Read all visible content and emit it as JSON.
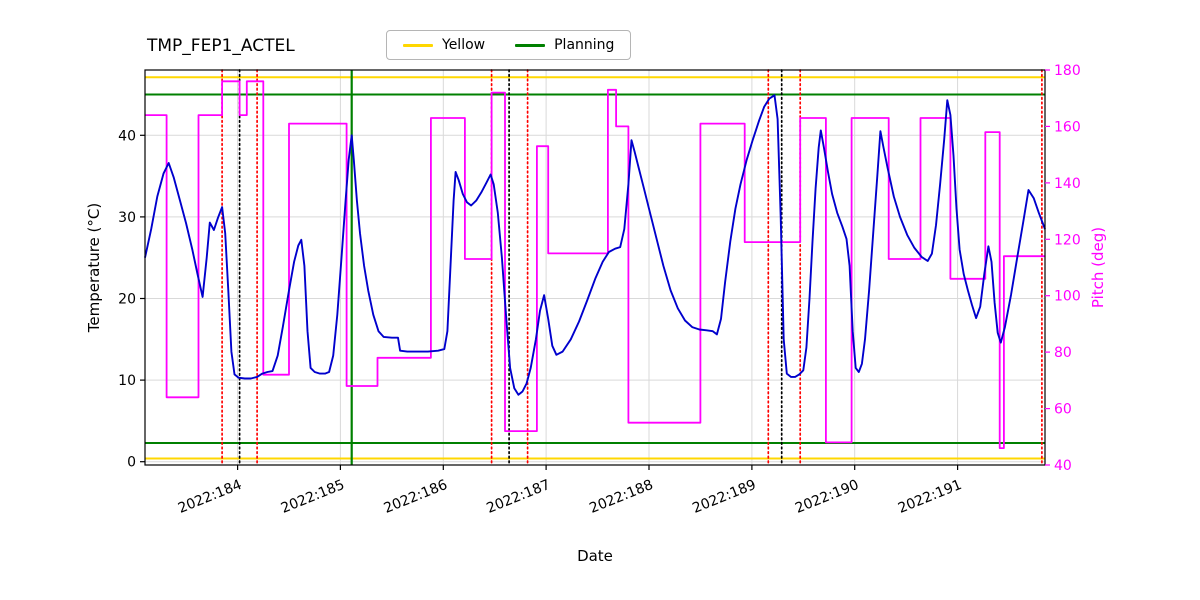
{
  "title": "TMP_FEP1_ACTEL",
  "legend": {
    "items": [
      {
        "label": "Yellow",
        "color": "#FFD700"
      },
      {
        "label": "Planning",
        "color": "#008000"
      }
    ]
  },
  "chart_data": {
    "type": "line",
    "title": "TMP_FEP1_ACTEL",
    "xlabel": "Date",
    "ylabel_left": "Temperature (°C)",
    "ylabel_right": "Pitch (deg)",
    "xlim": [
      183.1,
      191.85
    ],
    "ylim_left": [
      -0.4,
      48.0
    ],
    "ylim_right": [
      40,
      180
    ],
    "grid": true,
    "x_ticks": {
      "values": [
        184,
        185,
        186,
        187,
        188,
        189,
        190,
        191
      ],
      "labels": [
        "2022:184",
        "2022:185",
        "2022:186",
        "2022:187",
        "2022:188",
        "2022:189",
        "2022:190",
        "2022:191"
      ]
    },
    "y_ticks_left": [
      0,
      10,
      20,
      30,
      40
    ],
    "y_ticks_right": [
      40,
      60,
      80,
      100,
      120,
      140,
      160,
      180
    ],
    "series": [
      {
        "name": "temperature",
        "axis": "left",
        "color": "#0000CD",
        "points": [
          [
            183.1,
            25.0
          ],
          [
            183.16,
            28.5
          ],
          [
            183.22,
            32.5
          ],
          [
            183.28,
            35.3
          ],
          [
            183.33,
            36.6
          ],
          [
            183.38,
            34.8
          ],
          [
            183.44,
            32.0
          ],
          [
            183.5,
            29.2
          ],
          [
            183.56,
            26.0
          ],
          [
            183.61,
            23.0
          ],
          [
            183.66,
            20.2
          ],
          [
            183.7,
            25.0
          ],
          [
            183.73,
            29.3
          ],
          [
            183.77,
            28.4
          ],
          [
            183.81,
            29.9
          ],
          [
            183.85,
            31.2
          ],
          [
            183.88,
            28.0
          ],
          [
            183.91,
            21.0
          ],
          [
            183.94,
            13.5
          ],
          [
            183.97,
            10.7
          ],
          [
            184.01,
            10.3
          ],
          [
            184.07,
            10.2
          ],
          [
            184.13,
            10.2
          ],
          [
            184.19,
            10.4
          ],
          [
            184.24,
            10.8
          ],
          [
            184.29,
            11.0
          ],
          [
            184.34,
            11.1
          ],
          [
            184.39,
            13.0
          ],
          [
            184.44,
            16.5
          ],
          [
            184.5,
            21.0
          ],
          [
            184.55,
            24.5
          ],
          [
            184.59,
            26.5
          ],
          [
            184.62,
            27.2
          ],
          [
            184.65,
            24.0
          ],
          [
            184.68,
            16.0
          ],
          [
            184.71,
            11.5
          ],
          [
            184.75,
            11.0
          ],
          [
            184.8,
            10.8
          ],
          [
            184.85,
            10.8
          ],
          [
            184.89,
            11.0
          ],
          [
            184.93,
            13.0
          ],
          [
            184.97,
            18.0
          ],
          [
            185.01,
            25.0
          ],
          [
            185.05,
            32.0
          ],
          [
            185.08,
            37.0
          ],
          [
            185.11,
            40.0
          ],
          [
            185.13,
            37.0
          ],
          [
            185.16,
            32.0
          ],
          [
            185.19,
            28.0
          ],
          [
            185.23,
            24.0
          ],
          [
            185.27,
            21.0
          ],
          [
            185.32,
            18.0
          ],
          [
            185.37,
            16.0
          ],
          [
            185.42,
            15.3
          ],
          [
            185.5,
            15.2
          ],
          [
            185.56,
            15.2
          ],
          [
            185.58,
            13.6
          ],
          [
            185.65,
            13.5
          ],
          [
            185.75,
            13.5
          ],
          [
            185.85,
            13.5
          ],
          [
            185.95,
            13.6
          ],
          [
            186.01,
            13.8
          ],
          [
            186.04,
            16.0
          ],
          [
            186.07,
            24.0
          ],
          [
            186.1,
            32.0
          ],
          [
            186.12,
            35.5
          ],
          [
            186.15,
            34.5
          ],
          [
            186.19,
            32.8
          ],
          [
            186.23,
            31.8
          ],
          [
            186.27,
            31.4
          ],
          [
            186.32,
            32.0
          ],
          [
            186.37,
            33.0
          ],
          [
            186.42,
            34.2
          ],
          [
            186.46,
            35.2
          ],
          [
            186.49,
            34.0
          ],
          [
            186.53,
            30.5
          ],
          [
            186.57,
            25.0
          ],
          [
            186.61,
            18.0
          ],
          [
            186.65,
            11.5
          ],
          [
            186.69,
            9.0
          ],
          [
            186.73,
            8.2
          ],
          [
            186.77,
            8.6
          ],
          [
            186.81,
            9.6
          ],
          [
            186.85,
            11.5
          ],
          [
            186.9,
            15.0
          ],
          [
            186.94,
            18.5
          ],
          [
            186.98,
            20.4
          ],
          [
            187.02,
            17.5
          ],
          [
            187.06,
            14.2
          ],
          [
            187.1,
            13.1
          ],
          [
            187.16,
            13.5
          ],
          [
            187.24,
            15.0
          ],
          [
            187.32,
            17.2
          ],
          [
            187.4,
            19.8
          ],
          [
            187.48,
            22.5
          ],
          [
            187.55,
            24.5
          ],
          [
            187.61,
            25.7
          ],
          [
            187.67,
            26.1
          ],
          [
            187.72,
            26.3
          ],
          [
            187.76,
            28.5
          ],
          [
            187.8,
            34.0
          ],
          [
            187.83,
            39.4
          ],
          [
            187.86,
            38.0
          ],
          [
            187.9,
            36.0
          ],
          [
            187.95,
            33.5
          ],
          [
            188.0,
            31.0
          ],
          [
            188.07,
            27.5
          ],
          [
            188.14,
            24.0
          ],
          [
            188.21,
            21.0
          ],
          [
            188.28,
            18.8
          ],
          [
            188.35,
            17.3
          ],
          [
            188.42,
            16.5
          ],
          [
            188.49,
            16.2
          ],
          [
            188.56,
            16.1
          ],
          [
            188.62,
            16.0
          ],
          [
            188.66,
            15.6
          ],
          [
            188.7,
            17.5
          ],
          [
            188.74,
            22.0
          ],
          [
            188.79,
            27.0
          ],
          [
            188.84,
            31.0
          ],
          [
            188.89,
            34.0
          ],
          [
            188.95,
            37.0
          ],
          [
            189.01,
            39.5
          ],
          [
            189.07,
            41.8
          ],
          [
            189.12,
            43.5
          ],
          [
            189.17,
            44.5
          ],
          [
            189.22,
            44.9
          ],
          [
            189.25,
            42.0
          ],
          [
            189.28,
            30.0
          ],
          [
            189.31,
            15.0
          ],
          [
            189.34,
            10.8
          ],
          [
            189.38,
            10.4
          ],
          [
            189.42,
            10.4
          ],
          [
            189.46,
            10.7
          ],
          [
            189.5,
            11.2
          ],
          [
            189.53,
            14.0
          ],
          [
            189.56,
            20.0
          ],
          [
            189.59,
            27.0
          ],
          [
            189.62,
            33.5
          ],
          [
            189.65,
            38.5
          ],
          [
            189.67,
            40.6
          ],
          [
            189.7,
            38.5
          ],
          [
            189.74,
            35.5
          ],
          [
            189.78,
            32.8
          ],
          [
            189.83,
            30.5
          ],
          [
            189.88,
            28.8
          ],
          [
            189.92,
            27.3
          ],
          [
            189.95,
            24.0
          ],
          [
            189.98,
            16.0
          ],
          [
            190.01,
            11.5
          ],
          [
            190.04,
            11.0
          ],
          [
            190.07,
            12.0
          ],
          [
            190.1,
            15.0
          ],
          [
            190.14,
            21.0
          ],
          [
            190.18,
            28.0
          ],
          [
            190.22,
            35.0
          ],
          [
            190.25,
            40.5
          ],
          [
            190.28,
            38.5
          ],
          [
            190.32,
            36.0
          ],
          [
            190.38,
            32.5
          ],
          [
            190.44,
            30.0
          ],
          [
            190.51,
            27.8
          ],
          [
            190.58,
            26.2
          ],
          [
            190.65,
            25.1
          ],
          [
            190.71,
            24.6
          ],
          [
            190.75,
            25.5
          ],
          [
            190.79,
            29.0
          ],
          [
            190.83,
            34.0
          ],
          [
            190.87,
            39.5
          ],
          [
            190.9,
            44.3
          ],
          [
            190.93,
            42.5
          ],
          [
            190.96,
            37.5
          ],
          [
            190.99,
            31.0
          ],
          [
            191.02,
            26.0
          ],
          [
            191.06,
            23.0
          ],
          [
            191.1,
            21.0
          ],
          [
            191.14,
            19.2
          ],
          [
            191.18,
            17.6
          ],
          [
            191.22,
            19.0
          ],
          [
            191.26,
            23.0
          ],
          [
            191.3,
            26.4
          ],
          [
            191.33,
            24.5
          ],
          [
            191.36,
            19.5
          ],
          [
            191.39,
            15.8
          ],
          [
            191.42,
            14.6
          ],
          [
            191.46,
            16.5
          ],
          [
            191.52,
            20.5
          ],
          [
            191.58,
            25.0
          ],
          [
            191.64,
            29.5
          ],
          [
            191.69,
            33.3
          ],
          [
            191.74,
            32.3
          ],
          [
            191.79,
            30.5
          ],
          [
            191.85,
            28.5
          ]
        ]
      },
      {
        "name": "pitch",
        "axis": "right",
        "color": "#FF00FF",
        "segments": [
          [
            183.1,
            183.31,
            164
          ],
          [
            183.31,
            183.62,
            64
          ],
          [
            183.62,
            183.85,
            164
          ],
          [
            183.85,
            184.02,
            176
          ],
          [
            184.02,
            184.09,
            164
          ],
          [
            184.09,
            184.25,
            176
          ],
          [
            184.25,
            184.5,
            72
          ],
          [
            184.5,
            185.06,
            161
          ],
          [
            185.06,
            185.36,
            68
          ],
          [
            185.36,
            185.88,
            78
          ],
          [
            185.88,
            186.21,
            163
          ],
          [
            186.21,
            186.47,
            113
          ],
          [
            186.47,
            186.6,
            172
          ],
          [
            186.6,
            186.91,
            52
          ],
          [
            186.91,
            187.02,
            153
          ],
          [
            187.02,
            187.6,
            115
          ],
          [
            187.6,
            187.68,
            173
          ],
          [
            187.68,
            187.8,
            160
          ],
          [
            187.8,
            188.5,
            55
          ],
          [
            188.5,
            188.93,
            161
          ],
          [
            188.93,
            189.47,
            119
          ],
          [
            189.47,
            189.72,
            163
          ],
          [
            189.72,
            189.97,
            48
          ],
          [
            189.97,
            190.33,
            163
          ],
          [
            190.33,
            190.64,
            113
          ],
          [
            190.64,
            190.93,
            163
          ],
          [
            190.93,
            191.27,
            106
          ],
          [
            191.27,
            191.41,
            158
          ],
          [
            191.41,
            191.45,
            46
          ],
          [
            191.45,
            191.85,
            114
          ]
        ]
      }
    ],
    "limit_lines": [
      {
        "name": "yellow-high",
        "value": 47.1,
        "color": "#FFD700"
      },
      {
        "name": "yellow-low",
        "value": 0.4,
        "color": "#FFD700"
      },
      {
        "name": "planning-high",
        "value": 45.0,
        "color": "#008000"
      },
      {
        "name": "planning-low",
        "value": 2.3,
        "color": "#008000"
      }
    ],
    "vlines": [
      {
        "x": 185.11,
        "color": "#008000",
        "style": "solid",
        "name": "planning-event"
      },
      {
        "x": 183.85,
        "color": "#FF0000",
        "style": "dotted",
        "name": "red-event-1"
      },
      {
        "x": 184.19,
        "color": "#FF0000",
        "style": "dotted",
        "name": "red-event-2"
      },
      {
        "x": 186.47,
        "color": "#FF0000",
        "style": "dotted",
        "name": "red-event-3"
      },
      {
        "x": 186.82,
        "color": "#FF0000",
        "style": "dotted",
        "name": "red-event-4"
      },
      {
        "x": 189.16,
        "color": "#FF0000",
        "style": "dotted",
        "name": "red-event-5"
      },
      {
        "x": 189.47,
        "color": "#FF0000",
        "style": "dotted",
        "name": "red-event-6"
      },
      {
        "x": 191.82,
        "color": "#FF0000",
        "style": "dotted",
        "name": "red-event-7"
      },
      {
        "x": 184.02,
        "color": "#000000",
        "style": "dotted",
        "name": "black-event-1"
      },
      {
        "x": 186.64,
        "color": "#000000",
        "style": "dotted",
        "name": "black-event-2"
      },
      {
        "x": 189.29,
        "color": "#000000",
        "style": "dotted",
        "name": "black-event-3"
      }
    ],
    "colors": {
      "temperature": "#0000CD",
      "pitch": "#FF00FF",
      "yellow_limit": "#FFD700",
      "planning_limit": "#008000",
      "grid": "#d9d9d9"
    }
  }
}
